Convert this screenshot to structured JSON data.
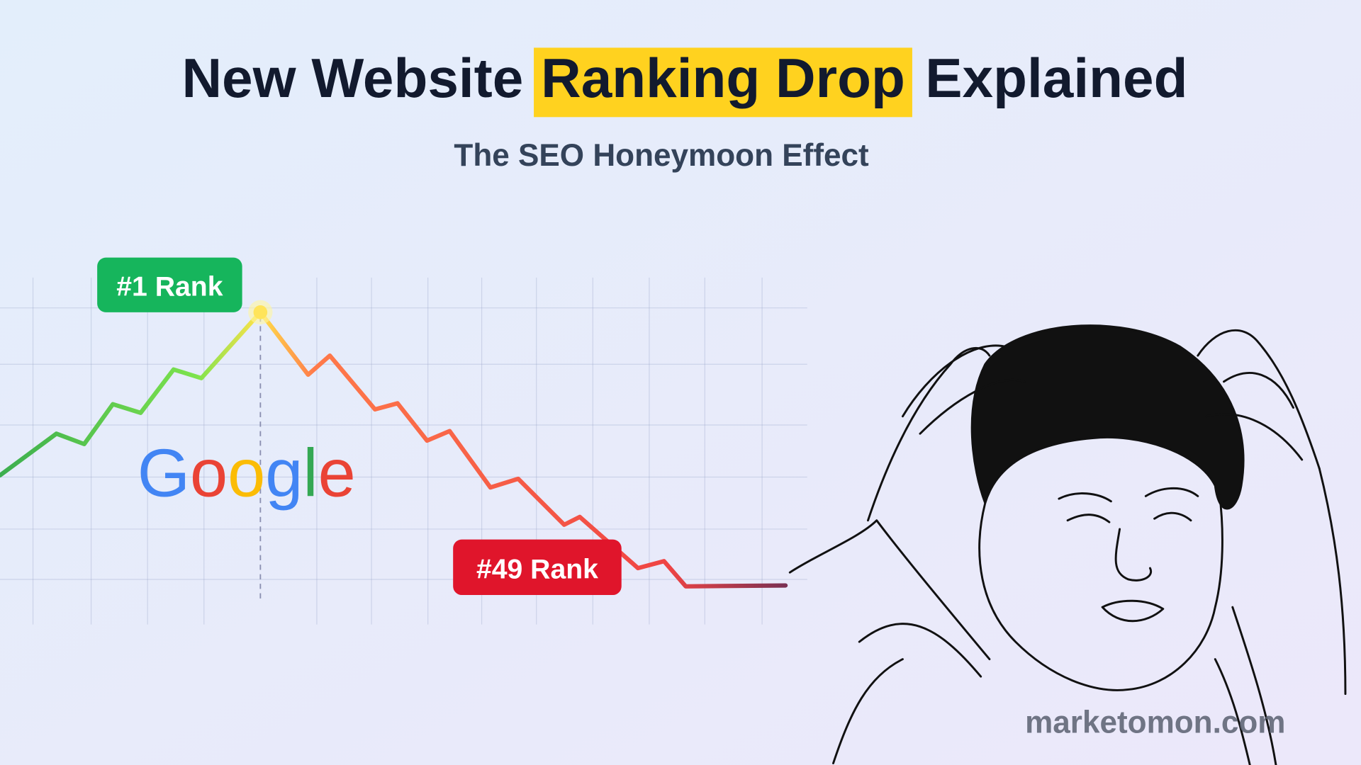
{
  "header": {
    "title_start": "New Website",
    "title_highlight": "Ranking Drop",
    "title_end": "Explained",
    "subtitle": "The SEO Honeymoon Effect"
  },
  "chart": {
    "peak_label": "#1 Rank",
    "drop_label": "#49 Rank",
    "logo": "Google"
  },
  "footer": {
    "watermark": "marketomon.com"
  }
}
